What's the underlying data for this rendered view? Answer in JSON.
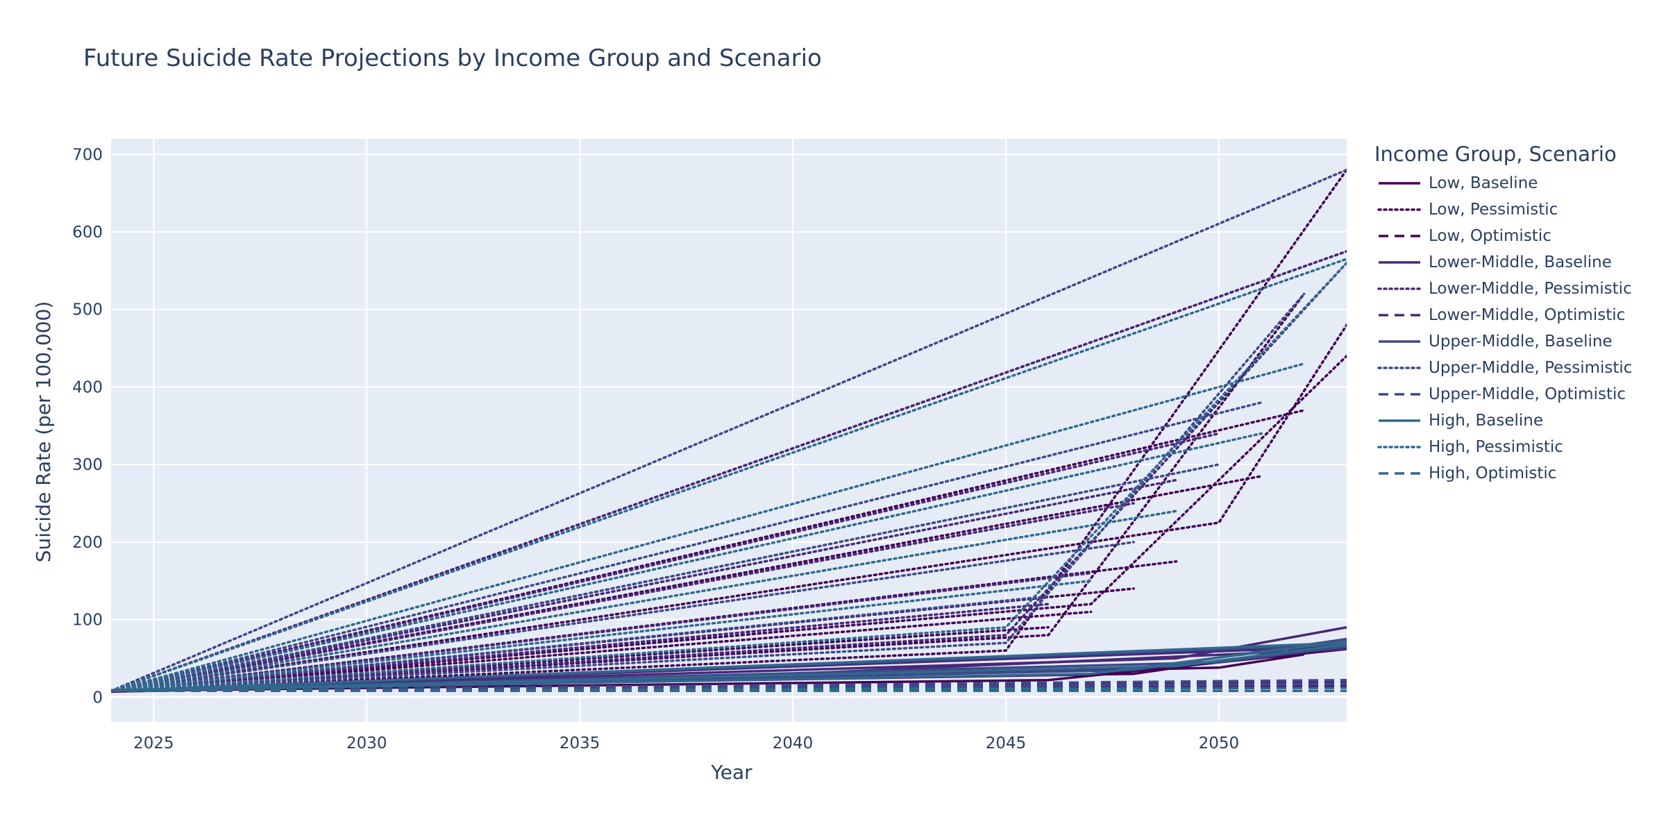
{
  "chart_data": {
    "type": "line",
    "title": "Future Suicide Rate Projections by Income Group and Scenario",
    "xlabel": "Year",
    "ylabel": "Suicide Rate (per 100,000)",
    "xlim": [
      2024,
      2053
    ],
    "ylim": [
      -32,
      720
    ],
    "xticks": [
      2025,
      2030,
      2035,
      2040,
      2045,
      2050
    ],
    "yticks": [
      0,
      100,
      200,
      300,
      400,
      500,
      600,
      700
    ],
    "grid": true,
    "legend": {
      "title": "Income Group, Scenario",
      "placement": "right"
    },
    "series": [
      {
        "name": "Low, Baseline",
        "color": "#440154",
        "dash": "solid",
        "lines": [
          {
            "x": [
              2024,
              2046,
              2053
            ],
            "y": [
              8,
              22,
              62
            ]
          },
          {
            "x": [
              2024,
              2050,
              2052
            ],
            "y": [
              7,
              38,
              55
            ]
          },
          {
            "x": [
              2024,
              2048,
              2053
            ],
            "y": [
              9,
              30,
              70
            ]
          }
        ]
      },
      {
        "name": "Low, Pessimistic",
        "color": "#440154",
        "dash": "dot",
        "lines": [
          {
            "x": [
              2024,
              2046
            ],
            "y": [
              8,
              90
            ]
          },
          {
            "x": [
              2024,
              2047
            ],
            "y": [
              8,
              110
            ]
          },
          {
            "x": [
              2024,
              2048
            ],
            "y": [
              8,
              140
            ]
          },
          {
            "x": [
              2024,
              2049
            ],
            "y": [
              8,
              175
            ]
          },
          {
            "x": [
              2024,
              2050,
              2053
            ],
            "y": [
              8,
              225,
              480
            ]
          },
          {
            "x": [
              2024,
              2051
            ],
            "y": [
              8,
              285
            ]
          },
          {
            "x": [
              2024,
              2052
            ],
            "y": [
              8,
              370
            ]
          },
          {
            "x": [
              2024,
              2053
            ],
            "y": [
              8,
              575
            ]
          },
          {
            "x": [
              2024,
              2045,
              2053
            ],
            "y": [
              8,
              60,
              680
            ]
          },
          {
            "x": [
              2024,
              2046,
              2052
            ],
            "y": [
              8,
              80,
              520
            ]
          },
          {
            "x": [
              2024,
              2047,
              2053
            ],
            "y": [
              8,
              120,
              440
            ]
          }
        ]
      },
      {
        "name": "Low, Optimistic",
        "color": "#440154",
        "dash": "dash",
        "lines": [
          {
            "x": [
              2024,
              2053
            ],
            "y": [
              8,
              18
            ]
          },
          {
            "x": [
              2024,
              2053
            ],
            "y": [
              8,
              14
            ]
          }
        ]
      },
      {
        "name": "Lower-Middle, Baseline",
        "color": "#482878",
        "dash": "solid",
        "lines": [
          {
            "x": [
              2024,
              2053
            ],
            "y": [
              8,
              65
            ]
          },
          {
            "x": [
              2024,
              2049,
              2053
            ],
            "y": [
              8,
              50,
              90
            ]
          },
          {
            "x": [
              2024,
              2040,
              2053
            ],
            "y": [
              8,
              30,
              62
            ]
          }
        ]
      },
      {
        "name": "Lower-Middle, Pessimistic",
        "color": "#482878",
        "dash": "dot",
        "lines": [
          {
            "x": [
              2024,
              2053
            ],
            "y": [
              8,
              575
            ]
          },
          {
            "x": [
              2024,
              2050
            ],
            "y": [
              8,
              340
            ]
          },
          {
            "x": [
              2024,
              2049
            ],
            "y": [
              8,
              280
            ]
          },
          {
            "x": [
              2024,
              2048
            ],
            "y": [
              8,
              250
            ]
          },
          {
            "x": [
              2024,
              2045,
              2053
            ],
            "y": [
              8,
              80,
              560
            ]
          },
          {
            "x": [
              2024,
              2047
            ],
            "y": [
              8,
              160
            ]
          },
          {
            "x": [
              2024,
              2046
            ],
            "y": [
              8,
              120
            ]
          }
        ]
      },
      {
        "name": "Lower-Middle, Optimistic",
        "color": "#482878",
        "dash": "dash",
        "lines": [
          {
            "x": [
              2024,
              2053
            ],
            "y": [
              8,
              20
            ]
          },
          {
            "x": [
              2024,
              2053
            ],
            "y": [
              8,
              16
            ]
          }
        ]
      },
      {
        "name": "Upper-Middle, Baseline",
        "color": "#3e4989",
        "dash": "solid",
        "lines": [
          {
            "x": [
              2024,
              2053
            ],
            "y": [
              8,
              68
            ]
          },
          {
            "x": [
              2024,
              2048,
              2053
            ],
            "y": [
              8,
              35,
              75
            ]
          },
          {
            "x": [
              2024,
              2050,
              2053
            ],
            "y": [
              8,
              45,
              65
            ]
          }
        ]
      },
      {
        "name": "Upper-Middle, Pessimistic",
        "color": "#3e4989",
        "dash": "dot",
        "lines": [
          {
            "x": [
              2024,
              2053
            ],
            "y": [
              8,
              680
            ]
          },
          {
            "x": [
              2024,
              2051
            ],
            "y": [
              8,
              380
            ]
          },
          {
            "x": [
              2024,
              2050
            ],
            "y": [
              8,
              300
            ]
          },
          {
            "x": [
              2024,
              2048
            ],
            "y": [
              8,
              200
            ]
          },
          {
            "x": [
              2024,
              2046
            ],
            "y": [
              8,
              130
            ]
          },
          {
            "x": [
              2024,
              2045,
              2052
            ],
            "y": [
              8,
              70,
              520
            ]
          }
        ]
      },
      {
        "name": "Upper-Middle, Optimistic",
        "color": "#3e4989",
        "dash": "dash",
        "lines": [
          {
            "x": [
              2024,
              2053
            ],
            "y": [
              8,
              22
            ]
          },
          {
            "x": [
              2024,
              2053
            ],
            "y": [
              8,
              17
            ]
          }
        ]
      },
      {
        "name": "High, Baseline",
        "color": "#31688e",
        "dash": "solid",
        "lines": [
          {
            "x": [
              2024,
              2053
            ],
            "y": [
              8,
              70
            ]
          },
          {
            "x": [
              2024,
              2047,
              2053
            ],
            "y": [
              8,
              30,
              72
            ]
          },
          {
            "x": [
              2024,
              2049,
              2053
            ],
            "y": [
              8,
              40,
              68
            ]
          }
        ]
      },
      {
        "name": "High, Pessimistic",
        "color": "#31688e",
        "dash": "dot",
        "lines": [
          {
            "x": [
              2024,
              2053
            ],
            "y": [
              8,
              565
            ]
          },
          {
            "x": [
              2024,
              2052
            ],
            "y": [
              8,
              430
            ]
          },
          {
            "x": [
              2024,
              2051
            ],
            "y": [
              8,
              340
            ]
          },
          {
            "x": [
              2024,
              2049
            ],
            "y": [
              8,
              240
            ]
          },
          {
            "x": [
              2024,
              2047
            ],
            "y": [
              8,
              150
            ]
          },
          {
            "x": [
              2024,
              2045,
              2053
            ],
            "y": [
              8,
              90,
              560
            ]
          }
        ]
      },
      {
        "name": "High, Optimistic",
        "color": "#31688e",
        "dash": "dash",
        "lines": [
          {
            "x": [
              2024,
              2053
            ],
            "y": [
              8,
              8
            ]
          },
          {
            "x": [
              2024,
              2053
            ],
            "y": [
              8,
              12
            ]
          }
        ]
      }
    ]
  }
}
